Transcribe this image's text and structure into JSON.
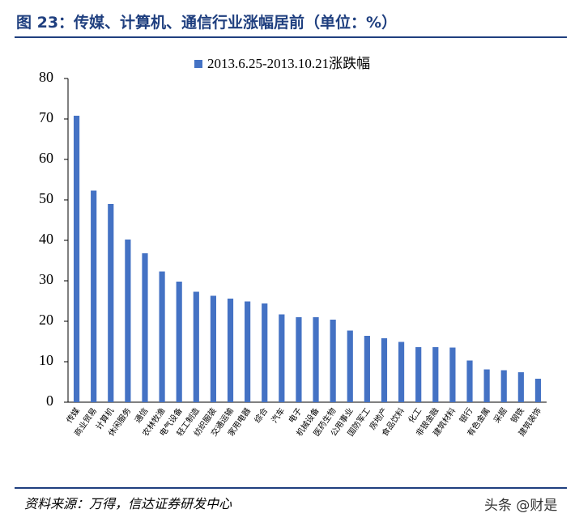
{
  "chart_data": {
    "type": "bar",
    "title": "图 23：传媒、计算机、通信行业涨幅居前（单位：%）",
    "categories": [
      "传媒",
      "商业贸易",
      "计算机",
      "休闲服务",
      "通信",
      "农林牧渔",
      "电气设备",
      "轻工制造",
      "纺织服装",
      "交通运输",
      "家用电器",
      "综合",
      "汽车",
      "电子",
      "机械设备",
      "医药生物",
      "公用事业",
      "国防军工",
      "房地产",
      "食品饮料",
      "化工",
      "非银金融",
      "建筑材料",
      "银行",
      "有色金属",
      "采掘",
      "钢铁",
      "建筑装饰"
    ],
    "series": [
      {
        "name": "2013.6.25-2013.10.21涨跌幅",
        "color": "#4472c4",
        "values": [
          70.8,
          52.3,
          49.0,
          40.2,
          36.8,
          32.3,
          29.8,
          27.3,
          26.3,
          25.6,
          24.9,
          24.4,
          21.7,
          21.0,
          21.0,
          20.4,
          17.7,
          16.4,
          15.8,
          14.9,
          13.6,
          13.6,
          13.5,
          10.3,
          8.1,
          7.9,
          7.4,
          5.8
        ]
      }
    ],
    "ylim": [
      0,
      80
    ],
    "yticks": [
      0,
      10,
      20,
      30,
      40,
      50,
      60,
      70,
      80
    ],
    "grid": false
  },
  "source": "资料来源：万得，信达证券研发中心",
  "watermark": "头条 @财是"
}
